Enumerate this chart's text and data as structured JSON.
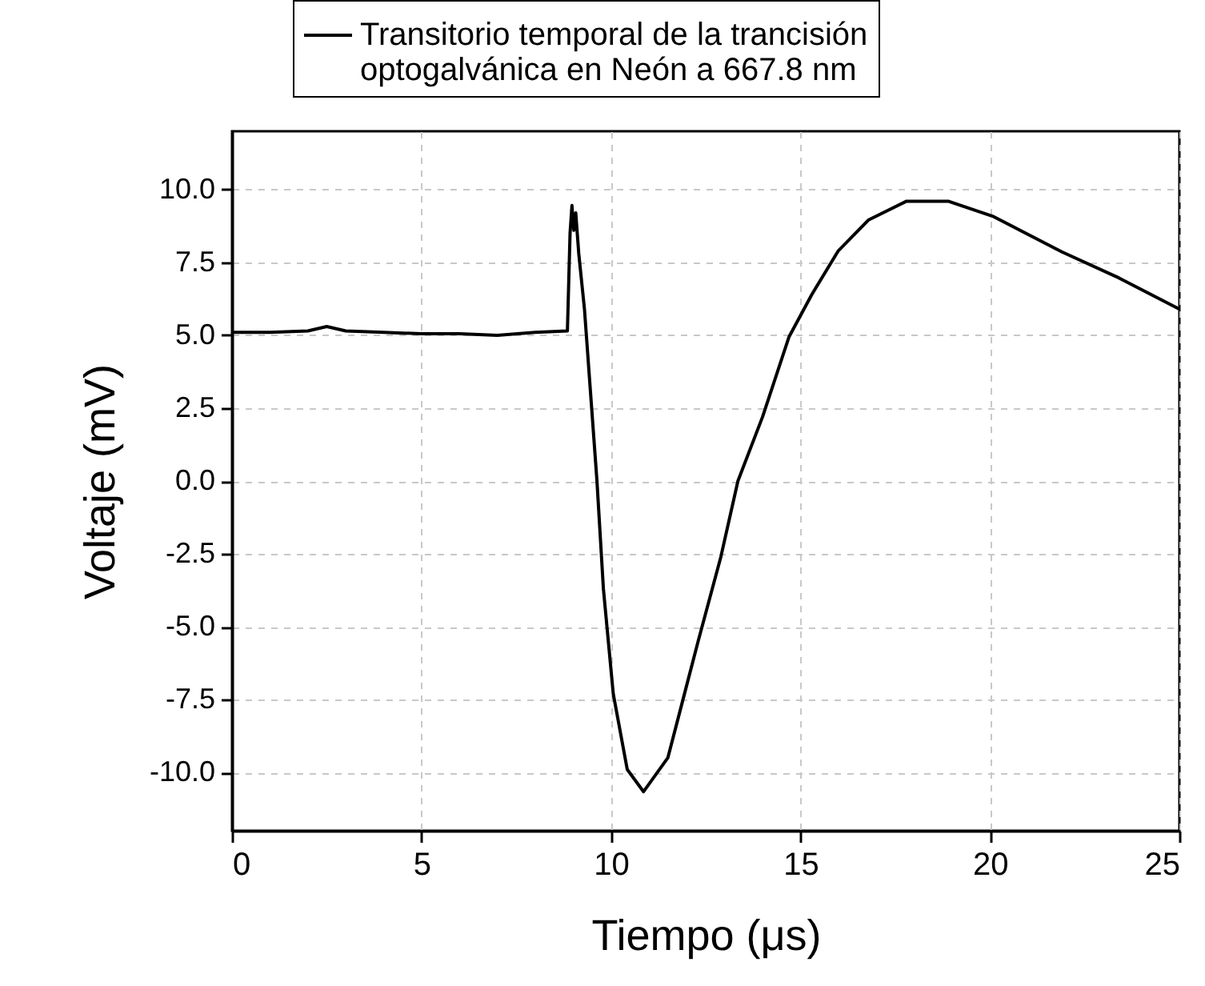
{
  "chart_data": {
    "type": "line",
    "xlabel": "Tiempo (μs)",
    "ylabel": "Voltaje (mV)",
    "xlim": [
      0,
      25
    ],
    "ylim": [
      -12,
      12
    ],
    "xticks": [
      0,
      5,
      10,
      15,
      20,
      25
    ],
    "yticks": [
      {
        "value": -10,
        "label": "-10.0"
      },
      {
        "value": -7.5,
        "label": "-7.5"
      },
      {
        "value": -5,
        "label": "-5.0"
      },
      {
        "value": -2.5,
        "label": "-2.5"
      },
      {
        "value": 0,
        "label": "0.0"
      },
      {
        "value": 2.5,
        "label": "2.5"
      },
      {
        "value": 5,
        "label": "5.0"
      },
      {
        "value": 7.5,
        "label": "7.5"
      },
      {
        "value": 10,
        "label": "10.0"
      }
    ],
    "grid": true,
    "legend": "top",
    "marker": "none",
    "line_style": "solid",
    "series": [
      {
        "name": "Transitorio temporal de la trancisión optogalvánica en Neón a 667.8 nm",
        "color": "#000000",
        "x": [
          0,
          1,
          2,
          2.5,
          3,
          4,
          5,
          6,
          7,
          8,
          8.85,
          8.92,
          8.97,
          9.02,
          9.07,
          9.15,
          9.3,
          9.63,
          9.8,
          10.06,
          10.43,
          10.86,
          11.5,
          11.9,
          12.3,
          12.9,
          13.35,
          14.0,
          14.7,
          15.3,
          16.0,
          16.8,
          17.8,
          18.9,
          20.1,
          21.9,
          23.4,
          25
        ],
        "values": [
          5.1,
          5.1,
          5.15,
          5.3,
          5.15,
          5.1,
          5.05,
          5.05,
          5.0,
          5.1,
          5.15,
          8.5,
          9.45,
          8.6,
          9.2,
          7.8,
          5.9,
          0,
          -3.7,
          -7.3,
          -9.9,
          -10.66,
          -9.5,
          -7.5,
          -5.5,
          -2.6,
          0,
          2.2,
          4.95,
          6.4,
          7.9,
          8.96,
          9.6,
          9.6,
          9.07,
          7.86,
          6.97,
          5.9
        ]
      }
    ]
  }
}
